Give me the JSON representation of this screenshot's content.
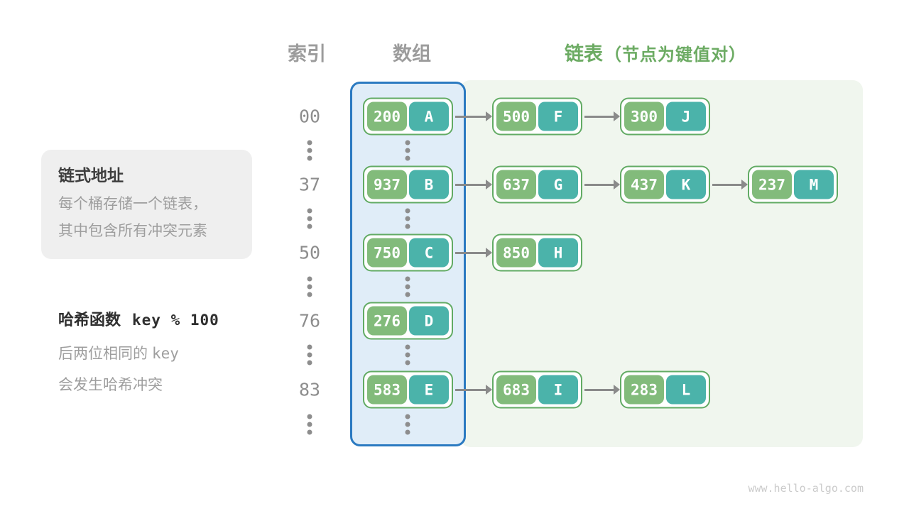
{
  "colors": {
    "accent_green": "#6cab63",
    "node_border": "#62ab64",
    "key_bg": "#82bb7b",
    "value_bg": "#4bb3aa",
    "array_fill": "#e0edf8",
    "array_border": "#2b7ac1",
    "list_fill": "#f0f6ee",
    "text_gray": "#9c9c9c",
    "arrow_gray": "#8a8a8a"
  },
  "headers": {
    "index": "索引",
    "array": "数组",
    "list": "链表",
    "list_note": "（节点为键值对）"
  },
  "info_box": {
    "title": "链式地址",
    "lines": [
      "每个桶存储一个链表，",
      "其中包含所有冲突元素"
    ]
  },
  "hash_note": {
    "label": "哈希函数",
    "formula": "key % 100",
    "line2_text": "后两位相同的",
    "line2_code": "key",
    "line3_text": "会发生哈希冲突"
  },
  "icons": {
    "ellipsis": "⋮"
  },
  "table": {
    "rows": [
      {
        "index": "00",
        "bucket": {
          "key": "200",
          "value": "A"
        },
        "chain": [
          {
            "key": "500",
            "value": "F"
          },
          {
            "key": "300",
            "value": "J"
          }
        ]
      },
      {
        "index": "37",
        "bucket": {
          "key": "937",
          "value": "B"
        },
        "chain": [
          {
            "key": "637",
            "value": "G"
          },
          {
            "key": "437",
            "value": "K"
          },
          {
            "key": "237",
            "value": "M"
          }
        ]
      },
      {
        "index": "50",
        "bucket": {
          "key": "750",
          "value": "C"
        },
        "chain": [
          {
            "key": "850",
            "value": "H"
          }
        ]
      },
      {
        "index": "76",
        "bucket": {
          "key": "276",
          "value": "D"
        },
        "chain": []
      },
      {
        "index": "83",
        "bucket": {
          "key": "583",
          "value": "E"
        },
        "chain": [
          {
            "key": "683",
            "value": "I"
          },
          {
            "key": "283",
            "value": "L"
          }
        ]
      }
    ]
  },
  "watermark": "www.hello-algo.com"
}
